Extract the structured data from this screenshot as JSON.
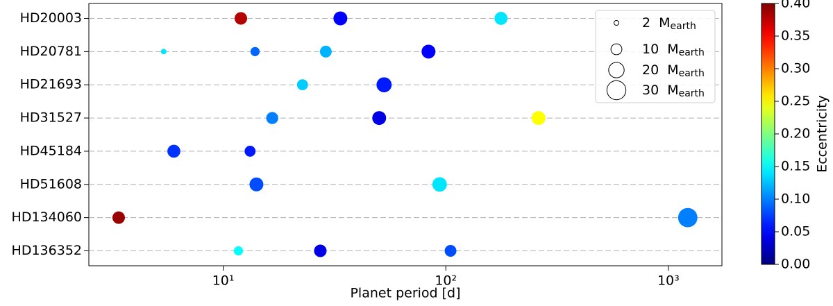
{
  "chart_data": {
    "type": "scatter",
    "x_label": "Planet period [d]",
    "x_scale": "log",
    "xlim": [
      2.49,
      1740
    ],
    "xticks": [
      {
        "value": 10,
        "label": "10¹"
      },
      {
        "value": 100,
        "label": "10²"
      },
      {
        "value": 1000,
        "label": "10³"
      }
    ],
    "categories": [
      "HD20003",
      "HD20781",
      "HD21693",
      "HD31527",
      "HD45184",
      "HD51608",
      "HD134060",
      "HD136352"
    ],
    "grid": true,
    "rows": [
      {
        "period": [
          12.0,
          33.6,
          177
        ],
        "mass": [
          13,
          16,
          14
        ],
        "eccentricity": [
          0.38,
          0.05,
          0.14
        ]
      },
      {
        "period": [
          5.4,
          13.9,
          28.9,
          83.6
        ],
        "mass": [
          2.5,
          7,
          11.5,
          16
        ],
        "eccentricity": [
          0.14,
          0.09,
          0.12,
          0.05
        ]
      },
      {
        "period": [
          22.7,
          52.8
        ],
        "mass": [
          10,
          19
        ],
        "eccentricity": [
          0.13,
          0.06
        ]
      },
      {
        "period": [
          16.6,
          50.2,
          261
        ],
        "mass": [
          12,
          16,
          16
        ],
        "eccentricity": [
          0.1,
          0.04,
          0.25
        ]
      },
      {
        "period": [
          6.0,
          13.2
        ],
        "mass": [
          14,
          10
        ],
        "eccentricity": [
          0.07,
          0.06
        ]
      },
      {
        "period": [
          14.1,
          93.8
        ],
        "mass": [
          16,
          17.5
        ],
        "eccentricity": [
          0.08,
          0.14
        ]
      },
      {
        "period": [
          3.39,
          1222
        ],
        "mass": [
          13,
          31
        ],
        "eccentricity": [
          0.39,
          0.1
        ]
      },
      {
        "period": [
          11.7,
          27.3,
          105
        ],
        "mass": [
          7,
          13,
          11.5
        ],
        "eccentricity": [
          0.15,
          0.04,
          0.08
        ]
      }
    ],
    "colormap": "jet",
    "colorbar": {
      "label": "Eccentricity",
      "lim": [
        0,
        0.4
      ],
      "ticks": [
        {
          "value": 0,
          "label": "0.00"
        },
        {
          "value": 0.05,
          "label": "0.05"
        },
        {
          "value": 0.1,
          "label": "0.10"
        },
        {
          "value": 0.15,
          "label": "0.15"
        },
        {
          "value": 0.2,
          "label": "0.20"
        },
        {
          "value": 0.25,
          "label": "0.25"
        },
        {
          "value": 0.3,
          "label": "0.30"
        },
        {
          "value": 0.35,
          "label": "0.35"
        },
        {
          "value": 0.4,
          "label": "0.40"
        }
      ]
    },
    "size_legend": {
      "values": [
        2,
        10,
        20,
        30
      ],
      "unit": "M",
      "unit_sub": "earth"
    }
  }
}
